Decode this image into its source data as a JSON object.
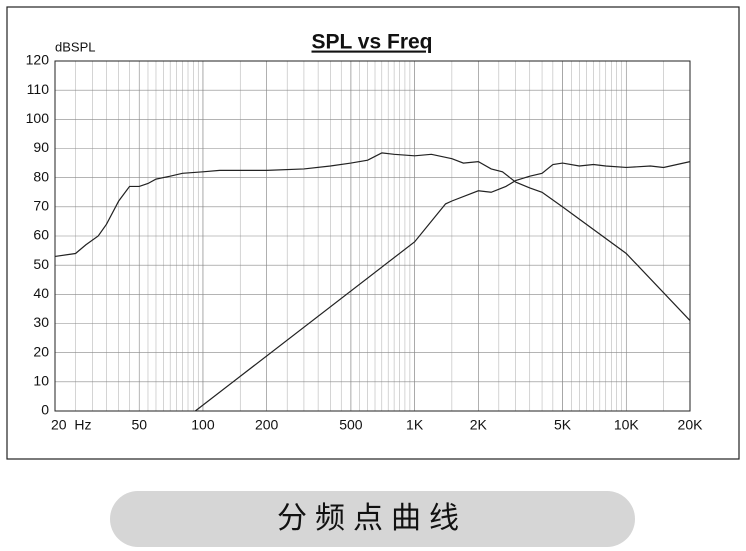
{
  "chart_data": {
    "type": "line",
    "title": "SPL vs Freq",
    "y_label": "dBSPL",
    "xscale": "log",
    "grid": true,
    "xlim": [
      20,
      20000
    ],
    "ylim": [
      0,
      120
    ],
    "xticks": [
      {
        "value": 20,
        "label": "20  Hz"
      },
      50,
      100,
      200,
      500,
      {
        "value": 1000,
        "label": "1K"
      },
      {
        "value": 2000,
        "label": "2K"
      },
      {
        "value": 5000,
        "label": "5K"
      },
      {
        "value": 10000,
        "label": "10K"
      },
      {
        "value": 20000,
        "label": "20K"
      }
    ],
    "yticks": [
      0,
      10,
      20,
      30,
      40,
      50,
      60,
      70,
      80,
      90,
      100,
      110,
      120
    ],
    "series": [
      {
        "color": "#222222",
        "x": [
          20,
          25,
          28,
          32,
          35,
          40,
          45,
          50,
          55,
          60,
          70,
          80,
          100,
          120,
          150,
          200,
          300,
          400,
          500,
          600,
          700,
          800,
          1000,
          1200,
          1500,
          1700,
          2000,
          2300,
          2600,
          3000,
          3500,
          4000,
          5000,
          10000,
          20000
        ],
        "values": [
          53,
          54,
          57,
          60,
          64,
          72,
          77,
          77,
          78,
          79.5,
          80.5,
          81.5,
          82,
          82.5,
          82.5,
          82.5,
          83,
          84,
          85,
          86,
          88.5,
          88,
          87.5,
          88,
          86.5,
          85,
          85.5,
          83,
          82,
          78.5,
          76.5,
          75,
          70,
          54,
          31
        ]
      },
      {
        "color": "#222222",
        "x": [
          92,
          1000,
          1400,
          1500,
          2000,
          2300,
          2700,
          3000,
          3500,
          4000,
          4500,
          5000,
          6000,
          7000,
          8000,
          10000,
          13000,
          15000,
          20000
        ],
        "values": [
          0,
          58,
          71,
          72,
          75.5,
          75,
          77,
          79,
          80.5,
          81.5,
          84.5,
          85,
          84,
          84.5,
          84,
          83.5,
          84,
          83.5,
          85.5
        ]
      }
    ]
  },
  "footer_label": "分频点曲线"
}
